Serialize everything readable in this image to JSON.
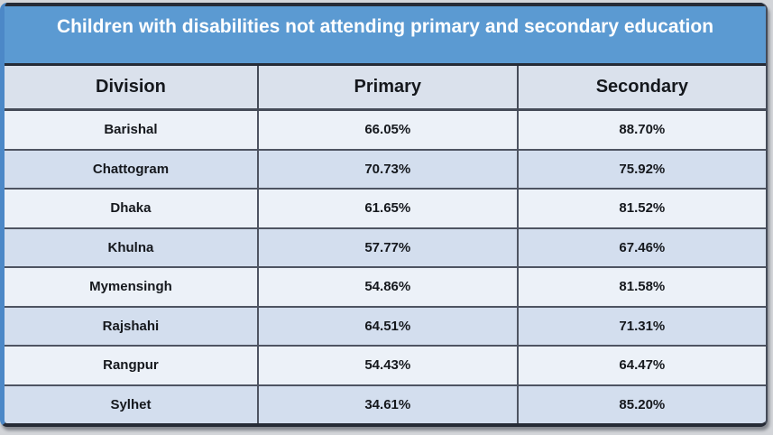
{
  "title": "Children with disabilities not attending primary and secondary education",
  "table": {
    "columns": [
      "Division",
      "Primary",
      "Secondary"
    ],
    "rows": [
      {
        "division": "Barishal",
        "primary": "66.05%",
        "secondary": "88.70%"
      },
      {
        "division": "Chattogram",
        "primary": "70.73%",
        "secondary": "75.92%"
      },
      {
        "division": "Dhaka",
        "primary": "61.65%",
        "secondary": "81.52%"
      },
      {
        "division": "Khulna",
        "primary": "57.77%",
        "secondary": "67.46%"
      },
      {
        "division": "Mymensingh",
        "primary": "54.86%",
        "secondary": "81.58%"
      },
      {
        "division": "Rajshahi",
        "primary": "64.51%",
        "secondary": "71.31%"
      },
      {
        "division": "Rangpur",
        "primary": "54.43%",
        "secondary": "64.47%"
      },
      {
        "division": "Sylhet",
        "primary": "34.61%",
        "secondary": "85.20%"
      }
    ]
  },
  "chart_data": {
    "type": "table",
    "title": "Children with disabilities not attending primary and secondary education",
    "columns": [
      "Division",
      "Primary",
      "Secondary"
    ],
    "categories": [
      "Barishal",
      "Chattogram",
      "Dhaka",
      "Khulna",
      "Mymensingh",
      "Rajshahi",
      "Rangpur",
      "Sylhet"
    ],
    "series": [
      {
        "name": "Primary",
        "values": [
          66.05,
          70.73,
          61.65,
          57.77,
          54.86,
          64.51,
          54.43,
          34.61
        ]
      },
      {
        "name": "Secondary",
        "values": [
          88.7,
          75.92,
          81.52,
          67.46,
          81.58,
          71.31,
          64.47,
          85.2
        ]
      }
    ],
    "unit": "%"
  },
  "colors": {
    "title_bar_bg": "#5b9ad2",
    "title_text": "#ffffff",
    "header_bg": "#dae1ec",
    "row_light": "#ecf1f8",
    "row_dark": "#d3deee",
    "border_dark": "#262b36",
    "border_row": "#4e5462",
    "frame_blue": "#4c88c7",
    "cell_text": "#15181d"
  }
}
